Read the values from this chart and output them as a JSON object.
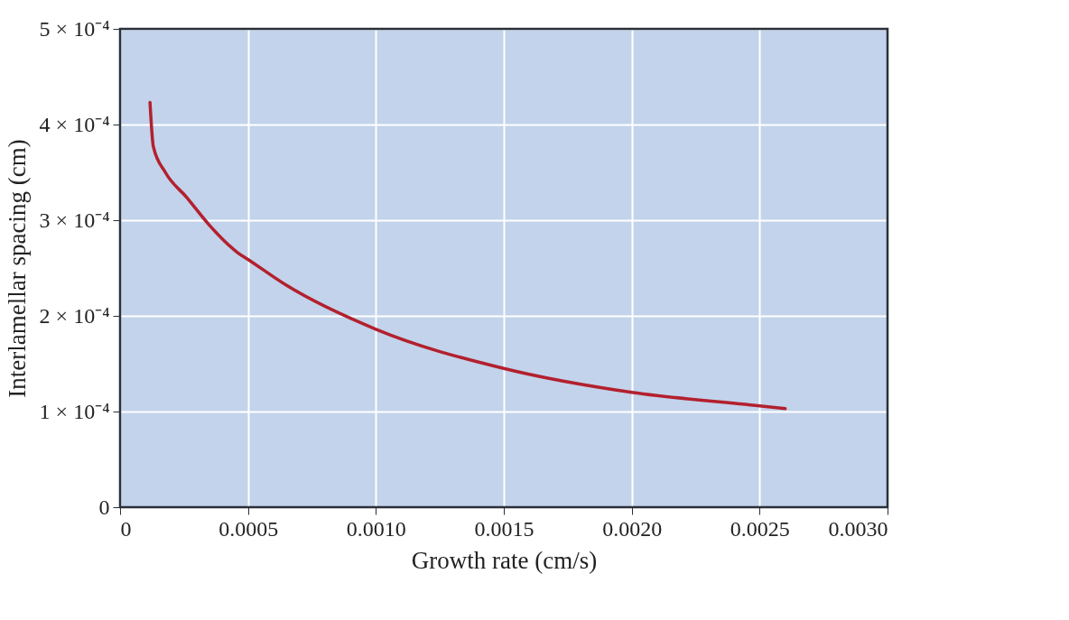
{
  "chart_data": {
    "type": "line",
    "xlabel": "Growth rate (cm/s)",
    "ylabel": "Interlamellar spacing (cm)",
    "series": [
      {
        "color": "#b3202e",
        "x": [
          0.000117,
          0.00013,
          0.000177,
          0.00026,
          0.000355,
          0.00046,
          0.0005,
          0.00065,
          0.001,
          0.0015,
          0.002,
          0.0025,
          0.0026
        ],
        "values": [
          0.000423,
          0.000377,
          0.00035,
          0.000324,
          0.000293,
          0.000266,
          0.000259,
          0.000232,
          0.000186,
          0.000145,
          0.00012,
          0.000106,
          0.000103
        ]
      }
    ],
    "xlim": [
      0,
      0.003
    ],
    "xticks": [
      0,
      0.0005,
      {
        "value": 0.001,
        "label": "0.0010"
      },
      0.0015,
      {
        "value": 0.002,
        "label": "0.0020"
      },
      0.0025,
      {
        "value": 0.003,
        "label": "0.0030"
      }
    ],
    "ylim": [
      0,
      0.0005
    ],
    "yticks": [
      0,
      {
        "value": 0.0001,
        "label": "1 × 10⁻⁴"
      },
      {
        "value": 0.0002,
        "label": "2 × 10⁻⁴"
      },
      {
        "value": 0.0003,
        "label": "3 × 10⁻⁴"
      },
      {
        "value": 0.0004,
        "label": "4 × 10⁻⁴"
      },
      {
        "value": 0.0005,
        "label": "5 × 10⁻⁴"
      }
    ],
    "grid": true,
    "line_style": "solid",
    "marker": "none"
  }
}
